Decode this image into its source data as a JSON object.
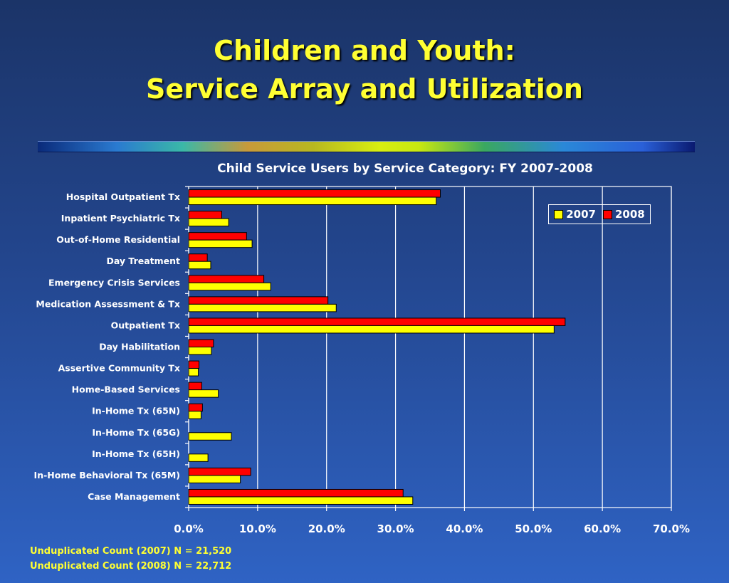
{
  "slide": {
    "title_line1": "Children and Youth:",
    "title_line2": "Service Array and Utilization",
    "note_2007": "Unduplicated Count (2007)  N = 21,520",
    "note_2008": "Unduplicated Count (2008)  N = 22,712"
  },
  "legend": {
    "s2007": "2007",
    "s2008": "2008"
  },
  "colors": {
    "s2007": "#ffff00",
    "s2008": "#ff0000"
  },
  "chart_data": {
    "type": "bar",
    "orientation": "horizontal",
    "title": "Child Service Users by Service Category: FY 2007-2008",
    "categories": [
      "Hospital Outpatient Tx",
      "Inpatient Psychiatric Tx",
      "Out-of-Home Residential",
      "Day Treatment",
      "Emergency Crisis Services",
      "Medication Assessment & Tx",
      "Outpatient Tx",
      "Day Habilitation",
      "Assertive Community Tx",
      "Home-Based Services",
      "In-Home Tx (65N)",
      "In-Home Tx (65G)",
      "In-Home Tx (65H)",
      "In-Home Behavioral Tx (65M)",
      "Case Management"
    ],
    "series": [
      {
        "name": "2008",
        "values": [
          36.5,
          4.8,
          8.4,
          2.7,
          10.9,
          20.2,
          54.6,
          3.6,
          1.5,
          1.9,
          2.0,
          0,
          0,
          9.0,
          31.1
        ]
      },
      {
        "name": "2007",
        "values": [
          35.9,
          5.8,
          9.2,
          3.2,
          11.9,
          21.4,
          53.0,
          3.3,
          1.4,
          4.3,
          1.8,
          6.2,
          2.8,
          7.5,
          32.5
        ]
      }
    ],
    "xlim": [
      0,
      70
    ],
    "xticks": [
      "0.0%",
      "10.0%",
      "20.0%",
      "30.0%",
      "40.0%",
      "50.0%",
      "60.0%",
      "70.0%"
    ],
    "grid": true,
    "legend_position": "top-right"
  }
}
